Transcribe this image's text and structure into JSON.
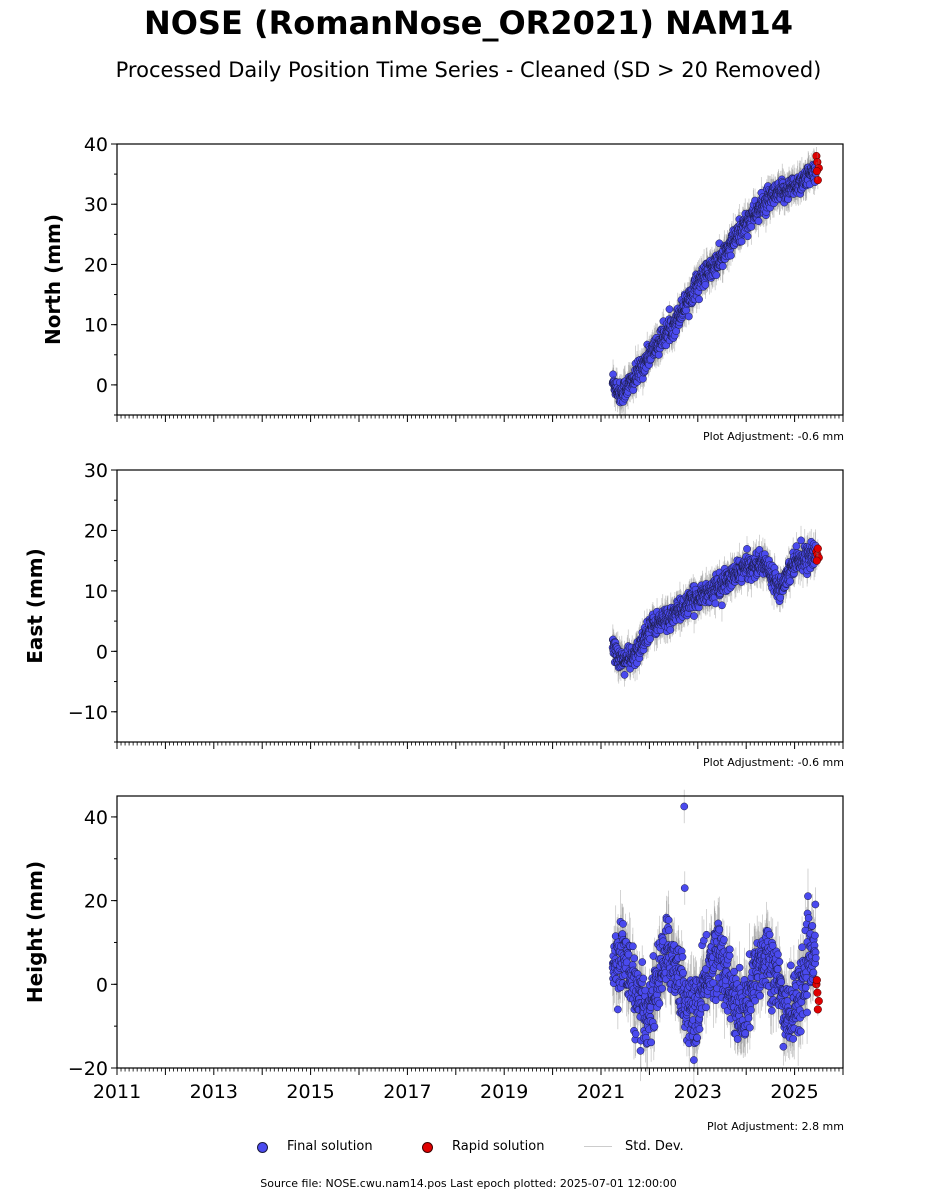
{
  "title": "NOSE (RomanNose_OR2021) NAM14",
  "subtitle": "Processed Daily Position Time Series - Cleaned (SD > 20 Removed)",
  "footer": "Source file: NOSE.cwu.nam14.pos  Last epoch plotted: 2025-07-01 12:00:00",
  "legend": {
    "final": "Final solution",
    "rapid": "Rapid solution",
    "std": "Std. Dev."
  },
  "colors": {
    "final": "#4a4aee",
    "rapid": "#e00000",
    "std": "#888888",
    "edge": "#1a1a40"
  },
  "chart_data": [
    {
      "type": "scatter",
      "ylabel": "North (mm)",
      "xlim": [
        2011,
        2026
      ],
      "ylim": [
        -5,
        40
      ],
      "yticks": [
        0,
        10,
        20,
        30,
        40
      ],
      "adjustment": "Plot Adjustment: -0.6 mm",
      "key_points": [
        [
          2021.25,
          0.5
        ],
        [
          2021.4,
          -1.5
        ],
        [
          2021.7,
          1.0
        ],
        [
          2022.0,
          5.0
        ],
        [
          2022.5,
          10.0
        ],
        [
          2023.0,
          17.0
        ],
        [
          2023.5,
          21.0
        ],
        [
          2024.0,
          27.0
        ],
        [
          2024.5,
          31.0
        ],
        [
          2025.0,
          33.0
        ],
        [
          2025.45,
          35.5
        ]
      ],
      "rapid_points": [
        [
          2025.45,
          38.0
        ],
        [
          2025.47,
          37.0
        ],
        [
          2025.5,
          36.0
        ],
        [
          2025.48,
          34.0
        ],
        [
          2025.46,
          35.5
        ]
      ]
    },
    {
      "type": "scatter",
      "ylabel": "East (mm)",
      "xlim": [
        2011,
        2026
      ],
      "ylim": [
        -15,
        30
      ],
      "yticks": [
        -10,
        0,
        10,
        20,
        30
      ],
      "adjustment": "Plot Adjustment: -0.6 mm",
      "key_points": [
        [
          2021.25,
          1.0
        ],
        [
          2021.4,
          -1.5
        ],
        [
          2021.7,
          -1.0
        ],
        [
          2022.0,
          4.0
        ],
        [
          2022.5,
          6.0
        ],
        [
          2023.0,
          9.0
        ],
        [
          2023.5,
          11.0
        ],
        [
          2024.0,
          14.0
        ],
        [
          2024.4,
          14.5
        ],
        [
          2024.7,
          10.5
        ],
        [
          2025.0,
          15.0
        ],
        [
          2025.45,
          16.0
        ]
      ],
      "rapid_points": [
        [
          2025.45,
          16.5
        ],
        [
          2025.47,
          16.0
        ],
        [
          2025.5,
          15.5
        ],
        [
          2025.48,
          17.0
        ],
        [
          2025.46,
          15.0
        ]
      ]
    },
    {
      "type": "scatter",
      "ylabel": "Height (mm)",
      "xlim": [
        2011,
        2026
      ],
      "ylim": [
        -20,
        45
      ],
      "yticks": [
        -20,
        0,
        20,
        40
      ],
      "xticks": [
        "2011",
        "2013",
        "2015",
        "2017",
        "2019",
        "2021",
        "2023",
        "2025"
      ],
      "adjustment": "Plot Adjustment: 2.8 mm",
      "seasonal_amplitude": 7,
      "outliers": [
        [
          2022.72,
          42.5
        ],
        [
          2022.73,
          23.0
        ]
      ],
      "rapid_points": [
        [
          2025.45,
          0.0
        ],
        [
          2025.47,
          -2.0
        ],
        [
          2025.5,
          -4.0
        ],
        [
          2025.48,
          -6.0
        ],
        [
          2025.46,
          1.0
        ]
      ]
    }
  ]
}
